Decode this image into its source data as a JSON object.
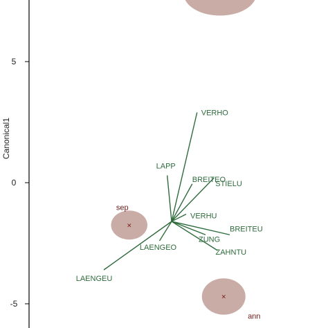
{
  "chart_data": {
    "type": "scatter",
    "title": "",
    "ylabel": "Canonical1",
    "xlabel": "",
    "yticks": [
      5,
      0,
      -5
    ],
    "ylim": [
      -6.0,
      7.5
    ],
    "xlim": [
      -3.8,
      6.4
    ],
    "colors": {
      "vector": "#2e6b3c",
      "vector_label": "#2e6b3c",
      "group_fill": "#c9aca6",
      "group_label": "#6b1a1a",
      "group_marker": "#7a1010",
      "axis": "#000000"
    },
    "origin": [
      0,
      -1.6
    ],
    "vectors": [
      {
        "name": "VERHO",
        "x": 1.05,
        "y": 2.9,
        "label": "VERHO"
      },
      {
        "name": "LAPP",
        "x": -0.18,
        "y": 0.3,
        "label": "LAPP"
      },
      {
        "name": "BREITEO",
        "x": 0.85,
        "y": -0.05,
        "label": "BREITEO"
      },
      {
        "name": "STIELU",
        "x": 1.75,
        "y": 0.2,
        "label": "STIELU"
      },
      {
        "name": "VERHU",
        "x": 0.6,
        "y": -1.3,
        "label": "VERHU"
      },
      {
        "name": "BREITEU",
        "x": 2.4,
        "y": -2.15,
        "label": "BREITEU"
      },
      {
        "name": "ZUNG",
        "x": 1.4,
        "y": -2.15,
        "label": "ZUNG"
      },
      {
        "name": "ZAHNTU",
        "x": 1.9,
        "y": -2.8,
        "label": "ZAHNTU"
      },
      {
        "name": "LAENGEO",
        "x": -0.5,
        "y": -2.4,
        "label": "LAENGEO"
      },
      {
        "name": "LAENGEU",
        "x": -2.8,
        "y": -3.6,
        "label": "LAENGEU"
      }
    ],
    "groups": [
      {
        "name": "sep",
        "x": -1.75,
        "y": -1.75,
        "rx": 0.75,
        "ry": 0.6,
        "label": "sep"
      },
      {
        "name": "ann",
        "x": 2.15,
        "y": -4.7,
        "rx": 0.9,
        "ry": 0.75,
        "label": "ann"
      },
      {
        "name": "top",
        "x": 2.0,
        "y": 7.8,
        "rx": 1.5,
        "ry": 0.9,
        "label": ""
      }
    ]
  }
}
